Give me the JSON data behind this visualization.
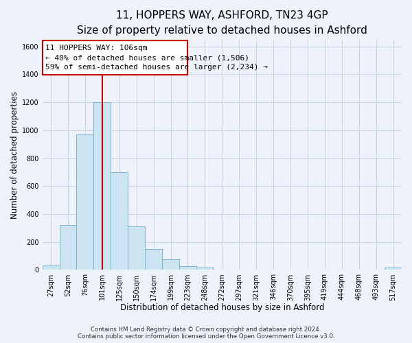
{
  "title": "11, HOPPERS WAY, ASHFORD, TN23 4GP",
  "subtitle": "Size of property relative to detached houses in Ashford",
  "xlabel": "Distribution of detached houses by size in Ashford",
  "ylabel": "Number of detached properties",
  "bin_labels": [
    "27sqm",
    "52sqm",
    "76sqm",
    "101sqm",
    "125sqm",
    "150sqm",
    "174sqm",
    "199sqm",
    "223sqm",
    "248sqm",
    "272sqm",
    "297sqm",
    "321sqm",
    "346sqm",
    "370sqm",
    "395sqm",
    "419sqm",
    "444sqm",
    "468sqm",
    "493sqm",
    "517sqm"
  ],
  "bar_heights": [
    30,
    320,
    970,
    1200,
    700,
    310,
    150,
    75,
    25,
    15,
    0,
    0,
    0,
    0,
    0,
    0,
    0,
    0,
    0,
    0,
    15
  ],
  "bar_color": "#cce4f0",
  "bar_edge_color": "#7ab3d4",
  "vline_x_data": 3.5,
  "vline_color": "#cc0000",
  "annotation_line1": "11 HOPPERS WAY: 106sqm",
  "annotation_line2": "← 40% of detached houses are smaller (1,506)",
  "annotation_line3": "59% of semi-detached houses are larger (2,234) →",
  "ylim": [
    0,
    1650
  ],
  "yticks": [
    0,
    200,
    400,
    600,
    800,
    1000,
    1200,
    1400,
    1600
  ],
  "grid_color": "#c8d4e8",
  "background_color": "#eef2fb",
  "plot_bg_color": "#eef2fb",
  "footer_text": "Contains HM Land Registry data © Crown copyright and database right 2024.\nContains public sector information licensed under the Open Government Licence v3.0.",
  "title_fontsize": 11,
  "subtitle_fontsize": 9.5,
  "xlabel_fontsize": 8.5,
  "ylabel_fontsize": 8.5,
  "tick_fontsize": 7,
  "footer_fontsize": 6.2,
  "ann_fontsize": 8.0
}
